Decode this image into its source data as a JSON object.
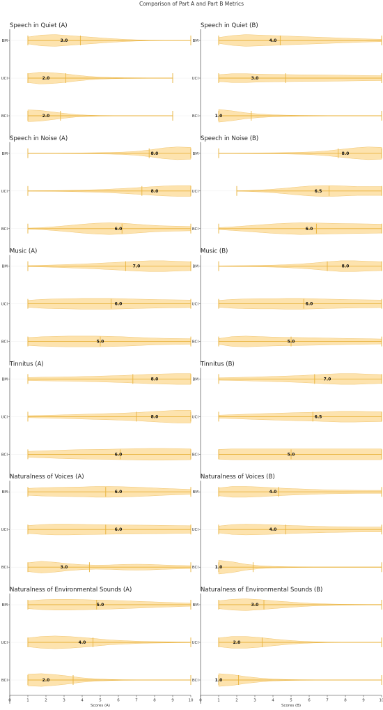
{
  "title": "Comparison of Part A and Part B Metrics",
  "chart_data": [
    {
      "type": "violin",
      "title": "Speech in Quiet (A)",
      "categories": [
        "BM",
        "UCI",
        "BCI"
      ],
      "xlim": [
        0,
        10
      ],
      "xticks": [
        0,
        1,
        2,
        3,
        4,
        5,
        6,
        7,
        8,
        9,
        10
      ],
      "xlabel": "",
      "series": [
        {
          "category": "BM",
          "min": 1,
          "max": 10,
          "median": 3.0,
          "mean": 3.9,
          "density": [
            0.35,
            0.55,
            0.6,
            0.5,
            0.4,
            0.3,
            0.2,
            0.12,
            0.06,
            0.03,
            0.02,
            0.02,
            0.02
          ]
        },
        {
          "category": "UCI",
          "min": 1,
          "max": 9,
          "median": 2.0,
          "mean": 3.1,
          "density": [
            0.45,
            0.6,
            0.55,
            0.45,
            0.3,
            0.18,
            0.1,
            0.06,
            0.04,
            0.03,
            0.02,
            0.02,
            0.02
          ]
        },
        {
          "category": "BCI",
          "min": 1,
          "max": 9,
          "median": 2.0,
          "mean": 2.8,
          "density": [
            0.6,
            0.55,
            0.4,
            0.25,
            0.12,
            0.06,
            0.03,
            0.02,
            0.01,
            0.01,
            0.01,
            0.01,
            0.01
          ]
        }
      ]
    },
    {
      "type": "violin",
      "title": "Speech in Quiet (B)",
      "categories": [
        "BM",
        "UCI",
        "BCI"
      ],
      "xlim": [
        0,
        10
      ],
      "xticks": [
        0,
        1,
        2,
        3,
        4,
        5,
        6,
        7,
        8,
        9,
        10
      ],
      "xlabel": "",
      "series": [
        {
          "category": "BM",
          "min": 1,
          "max": 10,
          "median": 4.0,
          "mean": 4.4,
          "density": [
            0.3,
            0.5,
            0.6,
            0.55,
            0.5,
            0.45,
            0.4,
            0.35,
            0.3,
            0.25,
            0.2,
            0.15,
            0.12
          ]
        },
        {
          "category": "UCI",
          "min": 1,
          "max": 10,
          "median": 3.0,
          "mean": 4.7,
          "density": [
            0.35,
            0.45,
            0.45,
            0.4,
            0.38,
            0.36,
            0.34,
            0.33,
            0.32,
            0.3,
            0.28,
            0.26,
            0.25
          ]
        },
        {
          "category": "BCI",
          "min": 1,
          "max": 10,
          "median": 1.0,
          "mean": 2.8,
          "density": [
            0.65,
            0.5,
            0.3,
            0.18,
            0.1,
            0.06,
            0.04,
            0.03,
            0.02,
            0.02,
            0.02,
            0.02,
            0.02
          ]
        }
      ]
    },
    {
      "type": "violin",
      "title": "Speech in Noise (A)",
      "categories": [
        "BM",
        "UCI",
        "BCI"
      ],
      "xlim": [
        0,
        10
      ],
      "xticks": [
        0,
        1,
        2,
        3,
        4,
        5,
        6,
        7,
        8,
        9,
        10
      ],
      "xlabel": "",
      "series": [
        {
          "category": "BM",
          "min": 1,
          "max": 10,
          "median": 8.0,
          "mean": 7.7,
          "density": [
            0.02,
            0.02,
            0.02,
            0.03,
            0.04,
            0.06,
            0.08,
            0.12,
            0.2,
            0.35,
            0.55,
            0.65,
            0.6
          ]
        },
        {
          "category": "UCI",
          "min": 1,
          "max": 10,
          "median": 8.0,
          "mean": 7.3,
          "density": [
            0.02,
            0.03,
            0.04,
            0.06,
            0.09,
            0.13,
            0.18,
            0.25,
            0.33,
            0.42,
            0.5,
            0.55,
            0.55
          ]
        },
        {
          "category": "BCI",
          "min": 1,
          "max": 10,
          "median": 6.0,
          "mean": 6.2,
          "density": [
            0.05,
            0.1,
            0.2,
            0.32,
            0.45,
            0.55,
            0.6,
            0.55,
            0.45,
            0.35,
            0.28,
            0.25,
            0.22
          ]
        }
      ]
    },
    {
      "type": "violin",
      "title": "Speech in Noise (B)",
      "categories": [
        "BM",
        "UCI",
        "BCI"
      ],
      "xlim": [
        0,
        10
      ],
      "xticks": [
        0,
        1,
        2,
        3,
        4,
        5,
        6,
        7,
        8,
        9,
        10
      ],
      "xlabel": "",
      "series": [
        {
          "category": "BM",
          "min": 1,
          "max": 10,
          "median": 8.0,
          "mean": 7.6,
          "density": [
            0.02,
            0.02,
            0.03,
            0.04,
            0.05,
            0.07,
            0.1,
            0.15,
            0.25,
            0.4,
            0.55,
            0.65,
            0.6
          ]
        },
        {
          "category": "UCI",
          "min": 2,
          "max": 10,
          "median": 6.5,
          "mean": 7.1,
          "density": [
            0.02,
            0.05,
            0.1,
            0.18,
            0.28,
            0.4,
            0.5,
            0.55,
            0.55,
            0.5,
            0.45,
            0.45,
            0.45
          ]
        },
        {
          "category": "BCI",
          "min": 1,
          "max": 10,
          "median": 6.0,
          "mean": 6.4,
          "density": [
            0.1,
            0.18,
            0.28,
            0.38,
            0.48,
            0.55,
            0.6,
            0.58,
            0.55,
            0.52,
            0.5,
            0.48,
            0.45
          ]
        }
      ]
    },
    {
      "type": "violin",
      "title": "Music (A)",
      "categories": [
        "BM",
        "UCI",
        "BCI"
      ],
      "xlim": [
        0,
        10
      ],
      "xticks": [
        0,
        1,
        2,
        3,
        4,
        5,
        6,
        7,
        8,
        9,
        10
      ],
      "xlabel": "",
      "series": [
        {
          "category": "BM",
          "min": 1,
          "max": 10,
          "median": 7.0,
          "mean": 6.4,
          "density": [
            0.05,
            0.08,
            0.12,
            0.17,
            0.22,
            0.28,
            0.35,
            0.42,
            0.5,
            0.55,
            0.55,
            0.5,
            0.45
          ]
        },
        {
          "category": "UCI",
          "min": 1,
          "max": 10,
          "median": 6.0,
          "mean": 5.6,
          "density": [
            0.35,
            0.45,
            0.5,
            0.52,
            0.55,
            0.55,
            0.55,
            0.52,
            0.48,
            0.45,
            0.42,
            0.4,
            0.38
          ]
        },
        {
          "category": "BCI",
          "min": 1,
          "max": 10,
          "median": 5.0,
          "mean": 5.0,
          "density": [
            0.4,
            0.48,
            0.52,
            0.55,
            0.55,
            0.55,
            0.52,
            0.48,
            0.42,
            0.36,
            0.32,
            0.3,
            0.28
          ]
        }
      ]
    },
    {
      "type": "violin",
      "title": "Music (B)",
      "categories": [
        "BM",
        "UCI",
        "BCI"
      ],
      "xlim": [
        0,
        10
      ],
      "xticks": [
        0,
        1,
        2,
        3,
        4,
        5,
        6,
        7,
        8,
        9,
        10
      ],
      "xlabel": "",
      "series": [
        {
          "category": "BM",
          "min": 1,
          "max": 10,
          "median": 8.0,
          "mean": 7.0,
          "density": [
            0.03,
            0.04,
            0.05,
            0.07,
            0.1,
            0.15,
            0.22,
            0.32,
            0.45,
            0.55,
            0.55,
            0.5,
            0.45
          ]
        },
        {
          "category": "UCI",
          "min": 1,
          "max": 10,
          "median": 6.0,
          "mean": 5.7,
          "density": [
            0.35,
            0.45,
            0.5,
            0.52,
            0.52,
            0.55,
            0.55,
            0.52,
            0.48,
            0.45,
            0.42,
            0.4,
            0.38
          ]
        },
        {
          "category": "BCI",
          "min": 1,
          "max": 10,
          "median": 5.0,
          "mean": 5.0,
          "density": [
            0.3,
            0.5,
            0.55,
            0.5,
            0.45,
            0.42,
            0.4,
            0.38,
            0.35,
            0.32,
            0.3,
            0.28,
            0.25
          ]
        }
      ]
    },
    {
      "type": "violin",
      "title": "Tinnitus (A)",
      "categories": [
        "BM",
        "UCI",
        "BCI"
      ],
      "xlim": [
        0,
        10
      ],
      "xticks": [
        0,
        1,
        2,
        3,
        4,
        5,
        6,
        7,
        8,
        9,
        10
      ],
      "xlabel": "",
      "series": [
        {
          "category": "BM",
          "min": 1,
          "max": 10,
          "median": 8.0,
          "mean": 6.8,
          "density": [
            0.15,
            0.18,
            0.2,
            0.22,
            0.25,
            0.28,
            0.32,
            0.36,
            0.42,
            0.48,
            0.52,
            0.55,
            0.55
          ]
        },
        {
          "category": "UCI",
          "min": 1,
          "max": 10,
          "median": 8.0,
          "mean": 7.0,
          "density": [
            0.1,
            0.13,
            0.16,
            0.2,
            0.24,
            0.28,
            0.32,
            0.36,
            0.42,
            0.5,
            0.58,
            0.65,
            0.65
          ]
        },
        {
          "category": "BCI",
          "min": 1,
          "max": 10,
          "median": 6.0,
          "mean": 6.1,
          "density": [
            0.3,
            0.35,
            0.4,
            0.45,
            0.48,
            0.5,
            0.52,
            0.55,
            0.58,
            0.6,
            0.6,
            0.58,
            0.55
          ]
        }
      ]
    },
    {
      "type": "violin",
      "title": "Tinnitus (B)",
      "categories": [
        "BM",
        "UCI",
        "BCI"
      ],
      "xlim": [
        0,
        10
      ],
      "xticks": [
        0,
        1,
        2,
        3,
        4,
        5,
        6,
        7,
        8,
        9,
        10
      ],
      "xlabel": "",
      "series": [
        {
          "category": "BM",
          "min": 1,
          "max": 10,
          "median": 7.0,
          "mean": 6.3,
          "density": [
            0.12,
            0.15,
            0.18,
            0.22,
            0.26,
            0.3,
            0.35,
            0.42,
            0.5,
            0.55,
            0.55,
            0.5,
            0.45
          ]
        },
        {
          "category": "UCI",
          "min": 1,
          "max": 10,
          "median": 6.5,
          "mean": 6.2,
          "density": [
            0.15,
            0.2,
            0.25,
            0.3,
            0.34,
            0.38,
            0.42,
            0.45,
            0.5,
            0.55,
            0.55,
            0.52,
            0.5
          ]
        },
        {
          "category": "BCI",
          "min": 1,
          "max": 10,
          "median": 5.0,
          "mean": 5.0,
          "density": [
            0.5,
            0.55,
            0.55,
            0.55,
            0.55,
            0.55,
            0.55,
            0.55,
            0.55,
            0.55,
            0.55,
            0.55,
            0.55
          ]
        }
      ]
    },
    {
      "type": "violin",
      "title": "Naturalness of Voices (A)",
      "categories": [
        "BM",
        "UCI",
        "BCI"
      ],
      "xlim": [
        0,
        10
      ],
      "xticks": [
        0,
        1,
        2,
        3,
        4,
        5,
        6,
        7,
        8,
        9,
        10
      ],
      "xlabel": "",
      "series": [
        {
          "category": "BM",
          "min": 1,
          "max": 10,
          "median": 6.0,
          "mean": 5.3,
          "density": [
            0.35,
            0.42,
            0.45,
            0.48,
            0.5,
            0.55,
            0.55,
            0.52,
            0.48,
            0.42,
            0.35,
            0.3,
            0.25
          ]
        },
        {
          "category": "UCI",
          "min": 1,
          "max": 10,
          "median": 6.0,
          "mean": 5.3,
          "density": [
            0.4,
            0.5,
            0.55,
            0.55,
            0.52,
            0.5,
            0.48,
            0.46,
            0.45,
            0.44,
            0.42,
            0.4,
            0.38
          ]
        },
        {
          "category": "BCI",
          "min": 1,
          "max": 10,
          "median": 3.0,
          "mean": 4.4,
          "density": [
            0.45,
            0.6,
            0.5,
            0.35,
            0.25,
            0.2,
            0.22,
            0.28,
            0.3,
            0.28,
            0.22,
            0.18,
            0.15
          ]
        }
      ]
    },
    {
      "type": "violin",
      "title": "Naturalness of Voices (B)",
      "categories": [
        "BM",
        "UCI",
        "BCI"
      ],
      "xlim": [
        0,
        10
      ],
      "xticks": [
        0,
        1,
        2,
        3,
        4,
        5,
        6,
        7,
        8,
        9,
        10
      ],
      "xlabel": "",
      "series": [
        {
          "category": "BM",
          "min": 1,
          "max": 10,
          "median": 4.0,
          "mean": 4.3,
          "density": [
            0.4,
            0.55,
            0.55,
            0.5,
            0.42,
            0.35,
            0.3,
            0.25,
            0.2,
            0.18,
            0.16,
            0.15,
            0.15
          ]
        },
        {
          "category": "UCI",
          "min": 1,
          "max": 10,
          "median": 4.0,
          "mean": 4.7,
          "density": [
            0.35,
            0.5,
            0.55,
            0.52,
            0.48,
            0.42,
            0.38,
            0.34,
            0.3,
            0.28,
            0.26,
            0.25,
            0.25
          ]
        },
        {
          "category": "BCI",
          "min": 1,
          "max": 10,
          "median": 1.0,
          "mean": 2.9,
          "density": [
            0.7,
            0.55,
            0.3,
            0.15,
            0.08,
            0.05,
            0.03,
            0.02,
            0.02,
            0.02,
            0.02,
            0.02,
            0.02
          ]
        }
      ]
    },
    {
      "type": "violin",
      "title": "Naturalness of Environmental Sounds (A)",
      "categories": [
        "BM",
        "UCI",
        "BCI"
      ],
      "xlim": [
        0,
        10
      ],
      "xticks": [
        0,
        1,
        2,
        3,
        4,
        5,
        6,
        7,
        8,
        9,
        10
      ],
      "xlabel": "Scores (A)",
      "series": [
        {
          "category": "BM",
          "min": 1,
          "max": 10,
          "median": 5.0,
          "mean": 4.8,
          "density": [
            0.4,
            0.5,
            0.55,
            0.55,
            0.52,
            0.48,
            0.45,
            0.4,
            0.35,
            0.3,
            0.25,
            0.2,
            0.15
          ]
        },
        {
          "category": "UCI",
          "min": 1,
          "max": 10,
          "median": 4.0,
          "mean": 4.6,
          "density": [
            0.45,
            0.6,
            0.65,
            0.6,
            0.5,
            0.38,
            0.25,
            0.18,
            0.12,
            0.08,
            0.06,
            0.04,
            0.03
          ]
        },
        {
          "category": "BCI",
          "min": 1,
          "max": 10,
          "median": 2.0,
          "mean": 3.5,
          "density": [
            0.6,
            0.65,
            0.55,
            0.4,
            0.22,
            0.12,
            0.06,
            0.03,
            0.02,
            0.02,
            0.02,
            0.02,
            0.02
          ]
        }
      ]
    },
    {
      "type": "violin",
      "title": "Naturalness of Environmental Sounds (B)",
      "categories": [
        "BM",
        "UCI",
        "BCI"
      ],
      "xlim": [
        0,
        10
      ],
      "xticks": [
        0,
        1,
        2,
        3,
        4,
        5,
        6,
        7,
        8,
        9,
        10
      ],
      "xlabel": "Scores (B)",
      "series": [
        {
          "category": "BM",
          "min": 1,
          "max": 10,
          "median": 3.0,
          "mean": 3.5,
          "density": [
            0.4,
            0.55,
            0.6,
            0.52,
            0.4,
            0.3,
            0.2,
            0.12,
            0.08,
            0.05,
            0.04,
            0.03,
            0.03
          ]
        },
        {
          "category": "UCI",
          "min": 1,
          "max": 10,
          "median": 2.0,
          "mean": 3.4,
          "density": [
            0.45,
            0.6,
            0.6,
            0.5,
            0.35,
            0.22,
            0.12,
            0.06,
            0.03,
            0.02,
            0.02,
            0.02,
            0.02
          ]
        },
        {
          "category": "BCI",
          "min": 1,
          "max": 10,
          "median": 1.0,
          "mean": 2.1,
          "density": [
            0.65,
            0.55,
            0.35,
            0.2,
            0.1,
            0.05,
            0.03,
            0.02,
            0.01,
            0.01,
            0.01,
            0.01,
            0.01
          ]
        }
      ]
    }
  ],
  "colors": {
    "violin_fill": "#fde2aa",
    "violin_edge": "#f0c36b",
    "line": "#e8b23a",
    "axis": "#333333",
    "grid": "#eeeeee"
  }
}
